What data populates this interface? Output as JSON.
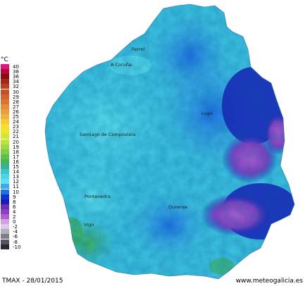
{
  "unit_label": "°C",
  "legend": {
    "labels": [
      "40",
      "38",
      "36",
      "34",
      "32",
      "30",
      "29",
      "28",
      "27",
      "26",
      "25",
      "24",
      "23",
      "22",
      "21",
      "20",
      "19",
      "18",
      "17",
      "16",
      "15",
      "14",
      "13",
      "12",
      "11",
      "10",
      "9",
      "8",
      "6",
      "4",
      "2",
      "0",
      "-2",
      "-4",
      "-6",
      "-8",
      "-10"
    ],
    "colors": [
      "#e8127a",
      "#b8083a",
      "#8a0a10",
      "#a4271b",
      "#b8421f",
      "#c4512a",
      "#d0642c",
      "#dc7430",
      "#e48a38",
      "#ec9e3c",
      "#f1b33e",
      "#f7c938",
      "#f9dc30",
      "#eee82c",
      "#d6e62b",
      "#bde43a",
      "#9ed943",
      "#7fce47",
      "#5dc04b",
      "#43b552",
      "#36b29a",
      "#39c7cc",
      "#4ad6e4",
      "#5ce2f0",
      "#3ea8ea",
      "#1f6fe6",
      "#0d35d4",
      "#1a1ab8",
      "#6a2fb8",
      "#8a3fc4",
      "#b15ed1",
      "#d3a0df",
      "#e0c8ea",
      "#b0b0b8",
      "#7e7e88",
      "#545460",
      "#2a2a32"
    ]
  },
  "cities": [
    {
      "name": "Ferrol"
    },
    {
      "name": "A Coruña"
    },
    {
      "name": "Santiago de Compostela"
    },
    {
      "name": "Lugo"
    },
    {
      "name": "Pontevedra"
    },
    {
      "name": "Ourense"
    },
    {
      "name": "Vigo"
    }
  ],
  "footer": {
    "left": "TMAX - 28/01/2015",
    "right": "www.meteogalicia.es"
  }
}
